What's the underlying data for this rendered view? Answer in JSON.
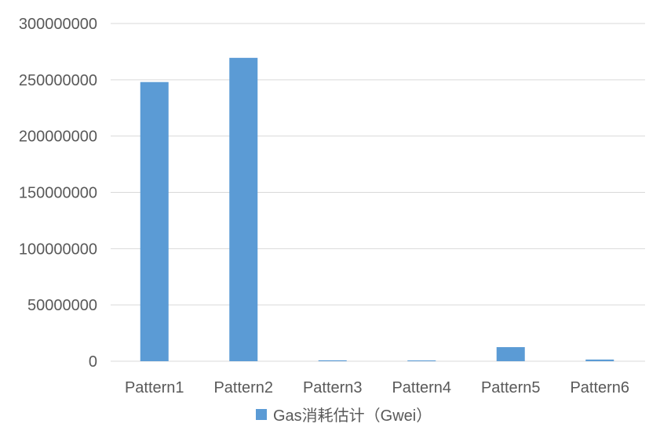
{
  "chart_data": {
    "type": "bar",
    "categories": [
      "Pattern1",
      "Pattern2",
      "Pattern3",
      "Pattern4",
      "Pattern5",
      "Pattern6"
    ],
    "series": [
      {
        "name": "Gas消耗估计（Gwei）",
        "color": "#5b9bd5",
        "values": [
          248000000,
          269500000,
          800000,
          700000,
          12500000,
          1500000
        ]
      }
    ],
    "yticks": [
      "0",
      "50000000",
      "100000000",
      "150000000",
      "200000000",
      "250000000",
      "300000000"
    ],
    "ylim": [
      0,
      300000000
    ],
    "title": "",
    "xlabel": "",
    "ylabel": "",
    "grid": true,
    "legend_position": "bottom"
  }
}
